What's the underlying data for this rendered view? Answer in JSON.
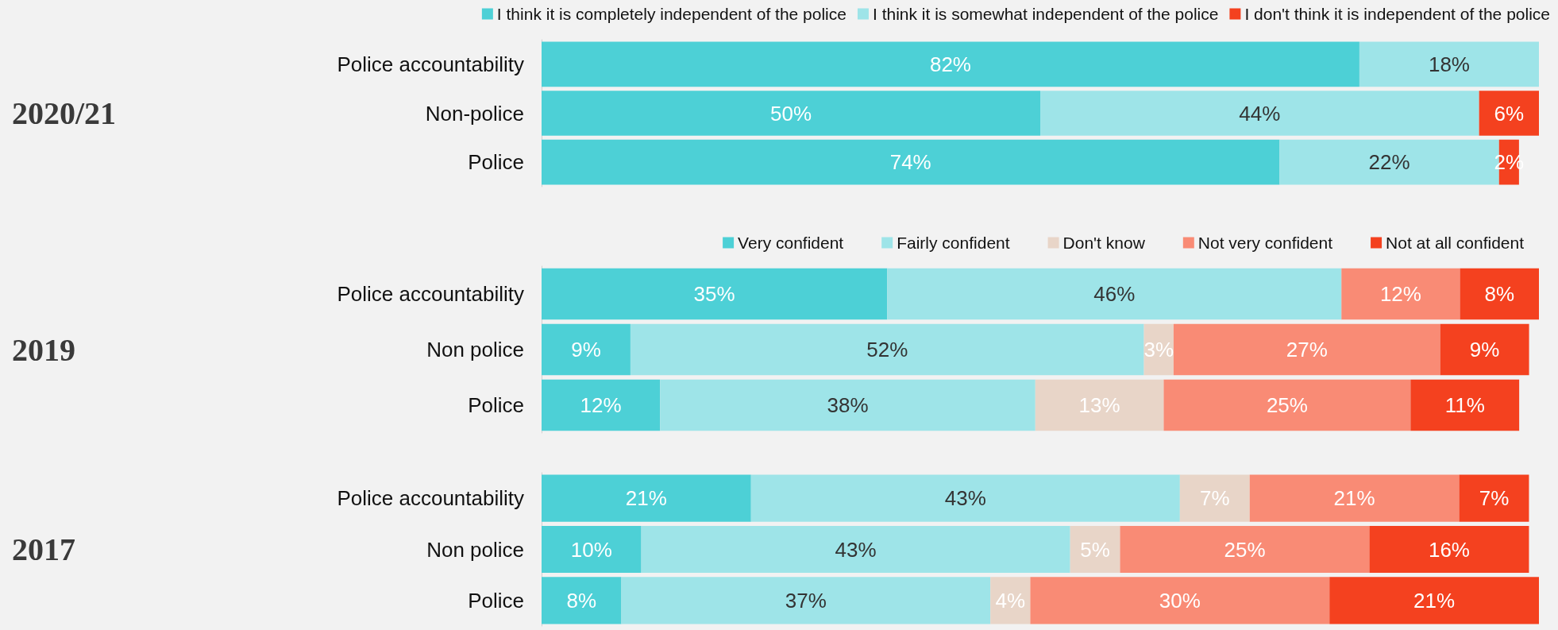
{
  "chart_data": [
    {
      "type": "bar",
      "orientation": "horizontal",
      "stacked": true,
      "ylabel": "2020/21",
      "legend": "top",
      "categories": [
        "Police accountability",
        "Non-police",
        "Police"
      ],
      "series": [
        {
          "name": "I think it is completely independent of the police",
          "color": "#4dd0d6",
          "values": [
            82,
            50,
            74
          ],
          "value_labels": [
            "82%",
            "50%",
            "74%"
          ]
        },
        {
          "name": "I think it is somewhat independent of the police",
          "color": "#9ee4e8",
          "values": [
            18,
            44,
            22
          ],
          "value_labels": [
            "18%",
            "44%",
            "22%"
          ]
        },
        {
          "name": "I don't think it is independent of the police",
          "color": "#f4411f",
          "values": [
            null,
            6,
            2
          ],
          "value_labels": [
            null,
            "6%",
            "2%"
          ]
        }
      ]
    },
    {
      "type": "bar",
      "orientation": "horizontal",
      "stacked": true,
      "ylabel": "2019",
      "legend": "top",
      "categories": [
        "Police accountability",
        "Non police",
        "Police"
      ],
      "series": [
        {
          "name": "Very confident",
          "color": "#4dd0d6",
          "values": [
            35,
            9,
            12
          ],
          "value_labels": [
            "35%",
            "9%",
            "12%"
          ]
        },
        {
          "name": "Fairly confident",
          "color": "#9ee4e8",
          "values": [
            46,
            52,
            38
          ],
          "value_labels": [
            "46%",
            "52%",
            "38%"
          ]
        },
        {
          "name": "Don't know",
          "color": "#e8d5c8",
          "values": [
            null,
            3,
            13
          ],
          "value_labels": [
            null,
            "3%",
            "13%"
          ]
        },
        {
          "name": "Not very confident",
          "color": "#f98b75",
          "values": [
            12,
            27,
            25
          ],
          "value_labels": [
            "12%",
            "27%",
            "25%"
          ]
        },
        {
          "name": "Not at all confident",
          "color": "#f4411f",
          "values": [
            8,
            9,
            11
          ],
          "value_labels": [
            "8%",
            "9%",
            "11%"
          ]
        }
      ]
    },
    {
      "type": "bar",
      "orientation": "horizontal",
      "stacked": true,
      "ylabel": "2017",
      "categories": [
        "Police accountability",
        "Non police",
        "Police"
      ],
      "series": [
        {
          "color": "#4dd0d6",
          "values": [
            21,
            10,
            8
          ],
          "value_labels": [
            "21%",
            "10%",
            "8%"
          ]
        },
        {
          "color": "#9ee4e8",
          "values": [
            43,
            43,
            37
          ],
          "value_labels": [
            "43%",
            "43%",
            "37%"
          ]
        },
        {
          "color": "#e8d5c8",
          "values": [
            7,
            5,
            4
          ],
          "value_labels": [
            "7%",
            "5%",
            "4%"
          ]
        },
        {
          "color": "#f98b75",
          "values": [
            21,
            25,
            30
          ],
          "value_labels": [
            "21%",
            "25%",
            "30%"
          ]
        },
        {
          "color": "#f4411f",
          "values": [
            7,
            16,
            21
          ],
          "value_labels": [
            "7%",
            "16%",
            "21%"
          ]
        }
      ]
    }
  ]
}
